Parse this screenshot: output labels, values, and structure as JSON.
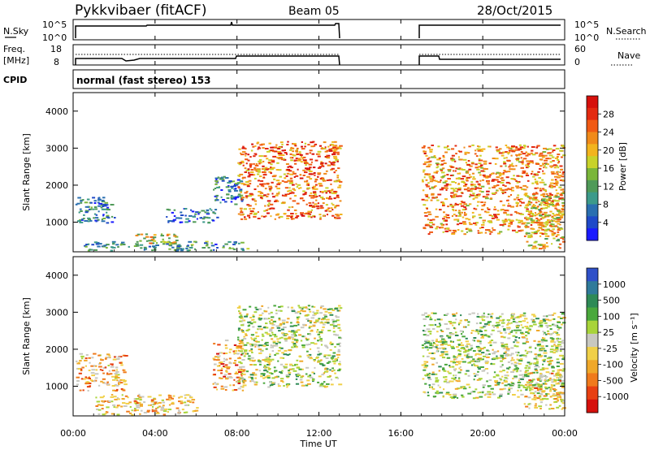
{
  "header": {
    "station": "Pykkvibaer (fitACF)",
    "beam": "Beam 05",
    "date": "28/Oct/2015"
  },
  "panels": {
    "nsky": {
      "left_label": "N.Sky",
      "left_ticks": [
        "10^5",
        "10^0"
      ],
      "right_ticks": [
        "10^5",
        "10^0"
      ],
      "right_label": "N.Search"
    },
    "freq": {
      "left_label_line1": "Freq.",
      "left_label_line2": "[MHz]",
      "left_ticks": [
        "18",
        "8"
      ],
      "right_ticks": [
        "60",
        "0"
      ],
      "right_label": "Nave"
    },
    "cpid": {
      "label": "CPID",
      "text": "normal (fast stereo) 153"
    }
  },
  "chart_data": [
    {
      "type": "heatmap",
      "name": "power",
      "ylabel": "Slant Range [km]",
      "xlabel": "",
      "ylim": [
        200,
        4500
      ],
      "y_ticks": [
        "1000",
        "2000",
        "3000",
        "4000"
      ],
      "colorbar": {
        "label": "Power [dB]",
        "ticks": [
          "4",
          "8",
          "12",
          "16",
          "20",
          "24",
          "28"
        ],
        "colors": [
          "#1a1aff",
          "#1f49c8",
          "#2a6fb0",
          "#3c9a8a",
          "#4f9a58",
          "#7ab63a",
          "#c8d22a",
          "#f2b41e",
          "#f08a1a",
          "#f05a14",
          "#e32a10",
          "#d6100c"
        ]
      },
      "echo_regions": [
        {
          "x": [
            0.1,
            2.0
          ],
          "y": [
            1000,
            1700
          ],
          "level": 0.25
        },
        {
          "x": [
            0.5,
            8.5
          ],
          "y": [
            250,
            500
          ],
          "level": 0.3
        },
        {
          "x": [
            3.0,
            5.0
          ],
          "y": [
            400,
            700
          ],
          "level": 0.55
        },
        {
          "x": [
            4.5,
            7.0
          ],
          "y": [
            1000,
            1400
          ],
          "level": 0.2
        },
        {
          "x": [
            6.8,
            8.2
          ],
          "y": [
            1500,
            2300
          ],
          "level": 0.25
        },
        {
          "x": [
            8.0,
            13.0
          ],
          "y": [
            1100,
            3200
          ],
          "level": 0.75
        },
        {
          "x": [
            17.0,
            23.9
          ],
          "y": [
            700,
            3100
          ],
          "level": 0.7
        },
        {
          "x": [
            22.0,
            23.9
          ],
          "y": [
            300,
            1800
          ],
          "level": 0.6
        }
      ]
    },
    {
      "type": "heatmap",
      "name": "velocity",
      "ylabel": "Slant Range [km]",
      "xlabel": "Time UT",
      "ylim": [
        200,
        4500
      ],
      "y_ticks": [
        "1000",
        "2000",
        "3000",
        "4000"
      ],
      "x_ticks": [
        "00:00",
        "04:00",
        "08:00",
        "12:00",
        "16:00",
        "20:00",
        "00:00"
      ],
      "colorbar": {
        "label": "Velocity [m s⁻¹]",
        "ticks": [
          "1000",
          "500",
          "100",
          "25",
          "-25",
          "-100",
          "-500",
          "-1000"
        ],
        "colors": [
          "#2f50c8",
          "#2f7a9a",
          "#2e8a56",
          "#4aa83c",
          "#a8d43a",
          "#c8c8c0",
          "#f0d048",
          "#f0a82a",
          "#f07a1c",
          "#e84012",
          "#d6100c"
        ]
      },
      "echo_regions": [
        {
          "x": [
            0.1,
            2.5
          ],
          "y": [
            900,
            1900
          ],
          "level": 0.65
        },
        {
          "x": [
            1.0,
            6.0
          ],
          "y": [
            250,
            800
          ],
          "level": 0.6
        },
        {
          "x": [
            6.8,
            8.3
          ],
          "y": [
            900,
            2300
          ],
          "level": 0.7
        },
        {
          "x": [
            8.0,
            13.0
          ],
          "y": [
            1000,
            3200
          ],
          "level": 0.45
        },
        {
          "x": [
            17.0,
            23.9
          ],
          "y": [
            700,
            3000
          ],
          "level": 0.45
        },
        {
          "x": [
            22.0,
            23.9
          ],
          "y": [
            400,
            1500
          ],
          "level": 0.6
        }
      ]
    }
  ],
  "time_axis": {
    "label": "Time UT",
    "ticks": [
      "00:00",
      "04:00",
      "08:00",
      "12:00",
      "16:00",
      "20:00",
      "00:00"
    ]
  }
}
